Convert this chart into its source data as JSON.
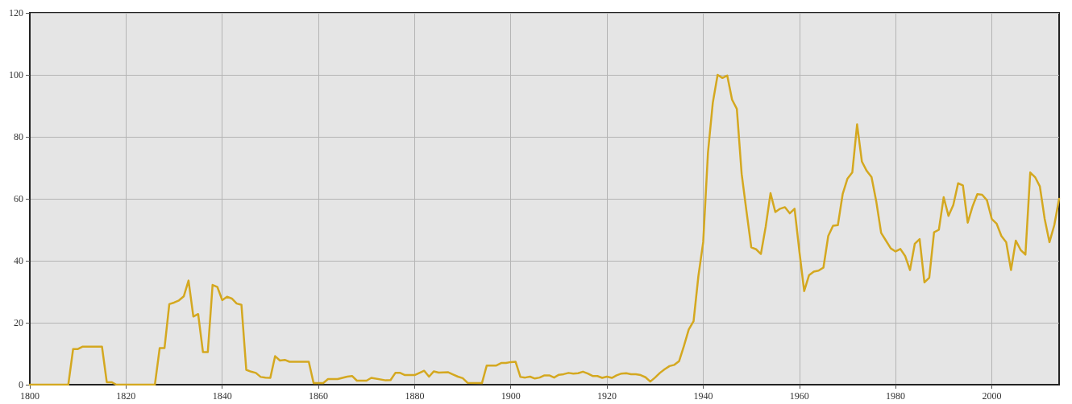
{
  "chart_data": {
    "type": "line",
    "x": [
      1800,
      1808,
      1809,
      1810,
      1811,
      1815,
      1816,
      1817,
      1818,
      1826,
      1827,
      1828,
      1829,
      1830,
      1831,
      1832,
      1833,
      1834,
      1835,
      1836,
      1837,
      1838,
      1839,
      1840,
      1841,
      1842,
      1843,
      1844,
      1845,
      1846,
      1847,
      1848,
      1849,
      1850,
      1851,
      1852,
      1853,
      1854,
      1858,
      1859,
      1861,
      1862,
      1864,
      1866,
      1867,
      1868,
      1870,
      1871,
      1874,
      1875,
      1876,
      1877,
      1878,
      1880,
      1882,
      1883,
      1884,
      1885,
      1887,
      1888,
      1889,
      1890,
      1891,
      1894,
      1895,
      1897,
      1898,
      1899,
      1900,
      1901,
      1902,
      1903,
      1904,
      1905,
      1906,
      1907,
      1908,
      1909,
      1910,
      1911,
      1912,
      1913,
      1914,
      1915,
      1916,
      1917,
      1918,
      1919,
      1920,
      1921,
      1922,
      1923,
      1924,
      1925,
      1926,
      1927,
      1928,
      1929,
      1930,
      1931,
      1932,
      1933,
      1934,
      1935,
      1936,
      1937,
      1938,
      1939,
      1940,
      1941,
      1942,
      1943,
      1944,
      1945,
      1946,
      1947,
      1948,
      1949,
      1950,
      1951,
      1952,
      1953,
      1954,
      1955,
      1956,
      1957,
      1958,
      1959,
      1960,
      1961,
      1962,
      1963,
      1964,
      1965,
      1966,
      1967,
      1968,
      1969,
      1970,
      1971,
      1972,
      1973,
      1974,
      1975,
      1976,
      1977,
      1978,
      1979,
      1980,
      1981,
      1982,
      1983,
      1984,
      1985,
      1986,
      1987,
      1988,
      1989,
      1990,
      1991,
      1992,
      1993,
      1994,
      1995,
      1996,
      1997,
      1998,
      1999,
      2000,
      2001,
      2002,
      2003,
      2004,
      2005,
      2006,
      2007,
      2008,
      2009,
      2010,
      2011,
      2012,
      2013,
      2014
    ],
    "series": [
      {
        "color": "#d4a820",
        "values": [
          0,
          0,
          11.5,
          11.5,
          12.3,
          12.3,
          0.8,
          0.8,
          0,
          0,
          11.8,
          11.8,
          26,
          26.5,
          27.2,
          28.5,
          33.6,
          22,
          22.8,
          10.5,
          10.5,
          32.2,
          31.5,
          27.3,
          28.4,
          27.8,
          26.2,
          25.8,
          4.8,
          4.2,
          3.8,
          2.5,
          2.3,
          2.2,
          9.2,
          7.8,
          8,
          7.4,
          7.4,
          0.5,
          0.5,
          1.8,
          1.8,
          2.6,
          2.8,
          1.3,
          1.3,
          2.2,
          1.4,
          1.5,
          3.8,
          3.8,
          3.1,
          3.1,
          4.5,
          2.6,
          4.3,
          3.9,
          4,
          3.3,
          2.6,
          2.1,
          0.6,
          0.5,
          6.2,
          6.2,
          7,
          7,
          7.3,
          7.4,
          2.5,
          2.3,
          2.6,
          2,
          2.3,
          3,
          3,
          2.3,
          3.2,
          3.4,
          3.8,
          3.6,
          3.7,
          4.2,
          3.6,
          2.8,
          2.8,
          2.2,
          2.6,
          2.2,
          3,
          3.6,
          3.7,
          3.4,
          3.4,
          3.1,
          2.4,
          1,
          2.3,
          3.8,
          5,
          6,
          6.4,
          7.6,
          12.5,
          17.8,
          20.5,
          35,
          46,
          75,
          91,
          100,
          99,
          99.8,
          92,
          89,
          68,
          56,
          44.3,
          43.7,
          42.2,
          51,
          61.8,
          55.7,
          56.8,
          57.3,
          55.3,
          56.8,
          43,
          30.2,
          35.3,
          36.5,
          36.8,
          37.8,
          48,
          51.3,
          51.5,
          61.5,
          66.5,
          68.5,
          84,
          72,
          69,
          67,
          59,
          49,
          46.5,
          44,
          43,
          43.8,
          41.5,
          37,
          45.5,
          47,
          33,
          34.5,
          49.2,
          50,
          60.5,
          54.5,
          58,
          65,
          64.3,
          52.3,
          57.5,
          61.5,
          61.3,
          59.5,
          53.5,
          52,
          48,
          46,
          37,
          46.5,
          43.5,
          42,
          68.5,
          67,
          64,
          53.5,
          46,
          51.5,
          60
        ]
      }
    ],
    "xlim": [
      1800,
      2014
    ],
    "xticks": [
      1800,
      1820,
      1840,
      1860,
      1880,
      1900,
      1920,
      1940,
      1960,
      1980,
      2000
    ],
    "ylim": [
      0,
      120
    ],
    "yticks": [
      0,
      20,
      40,
      60,
      80,
      100,
      120
    ],
    "grid": true,
    "marker": "none",
    "line_style": "solid"
  }
}
